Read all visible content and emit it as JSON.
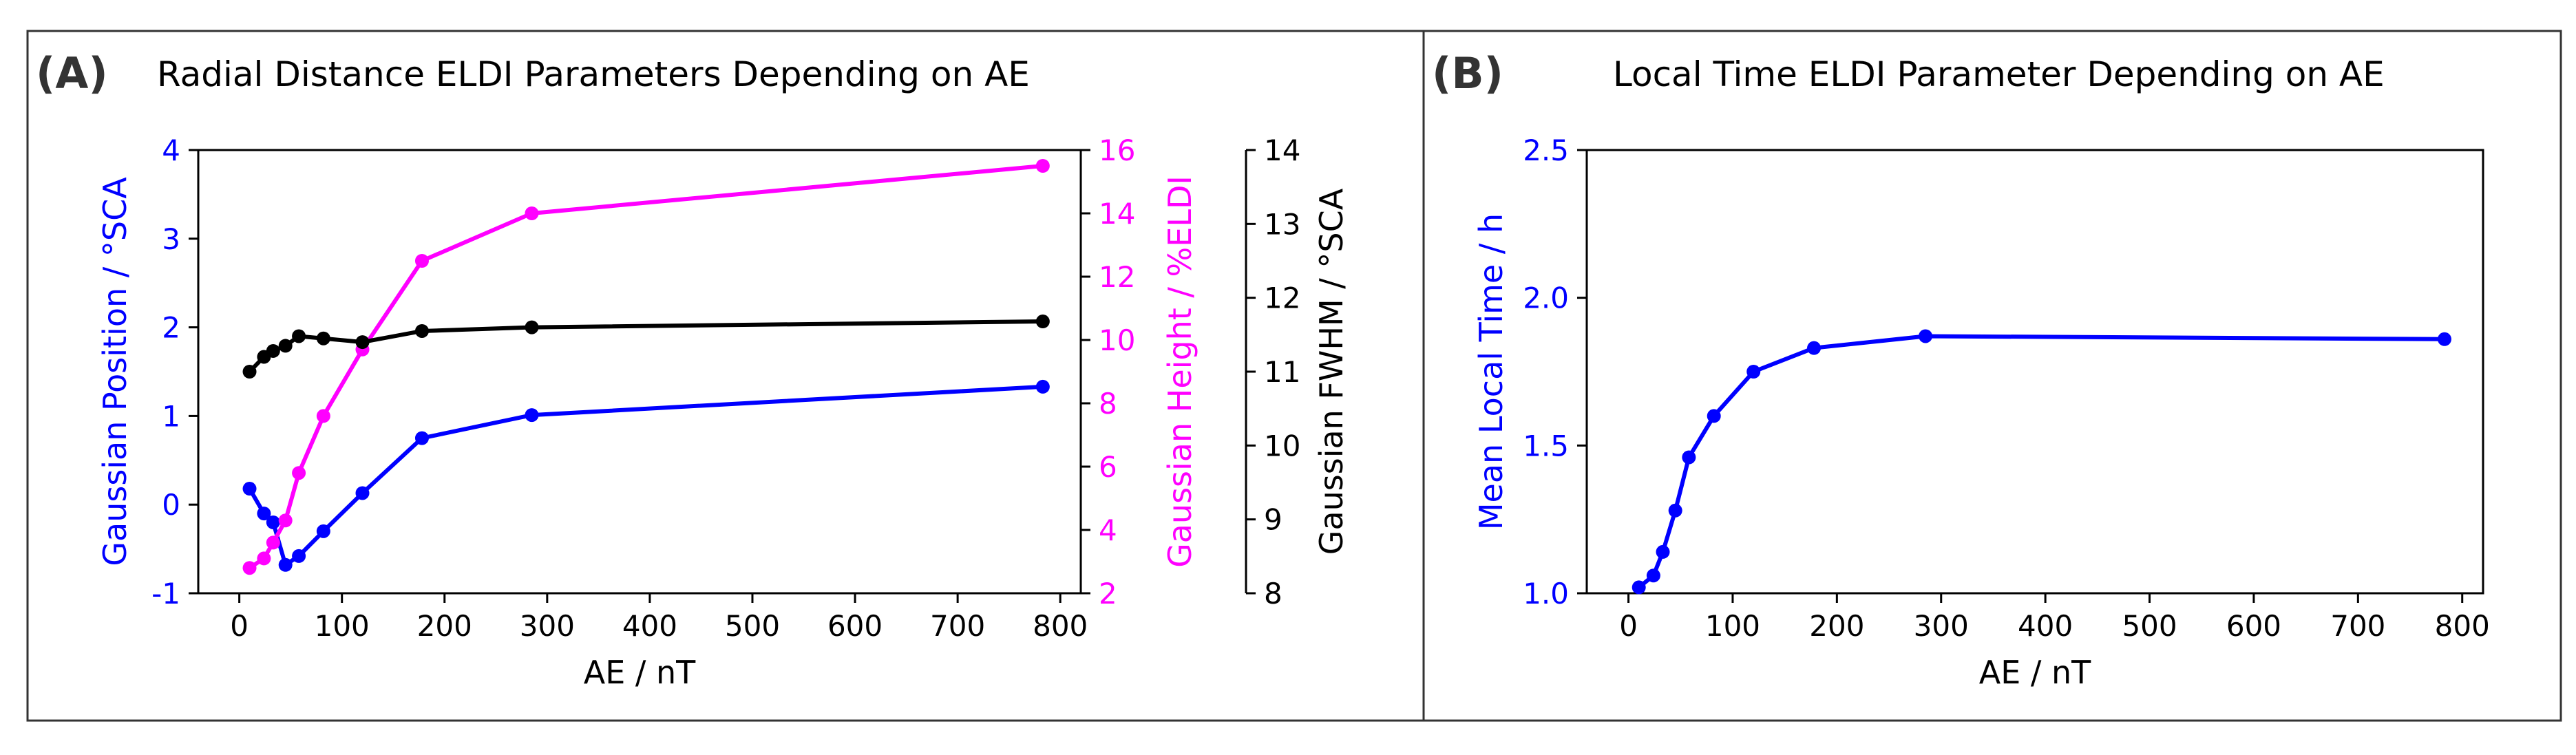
{
  "panels": [
    {
      "label": "(A)",
      "title": "Radial Distance ELDI Parameters Depending on AE"
    },
    {
      "label": "(B)",
      "title": "Local Time ELDI Parameter Depending on AE"
    }
  ],
  "colors": {
    "blue": "#0000ff",
    "magenta": "#ff00ff",
    "black": "#000000",
    "frame": "#333333"
  },
  "chart_data": [
    {
      "type": "line",
      "title": "Radial Distance ELDI Parameters Depending on AE",
      "xlabel": "AE / nT",
      "xlim": [
        -40,
        820
      ],
      "xticks": [
        0,
        100,
        200,
        300,
        400,
        500,
        600,
        700,
        800
      ],
      "x": [
        10,
        24,
        33,
        45,
        58,
        82,
        120,
        178,
        285,
        783
      ],
      "series": [
        {
          "name": "Gaussian Position",
          "axis": "left",
          "color": "#0000ff",
          "ylabel": "Gaussian Position / °SCA",
          "ylim": [
            -1,
            4
          ],
          "yticks": [
            -1,
            0,
            1,
            2,
            3,
            4
          ],
          "ytick_labels": [
            "-1",
            "0",
            "1",
            "2",
            "3",
            "4"
          ],
          "values": [
            0.18,
            -0.1,
            -0.2,
            -0.68,
            -0.58,
            -0.3,
            0.13,
            0.75,
            1.01,
            1.33
          ]
        },
        {
          "name": "Gaussian Height",
          "axis": "right1",
          "color": "#ff00ff",
          "ylabel": "Gaussian Height / %ELDI",
          "ylim": [
            2,
            16
          ],
          "yticks": [
            2,
            4,
            6,
            8,
            10,
            12,
            14,
            16
          ],
          "ytick_labels": [
            "2",
            "4",
            "6",
            "8",
            "10",
            "12",
            "14",
            "16"
          ],
          "values": [
            2.8,
            3.1,
            3.6,
            4.3,
            5.8,
            7.6,
            9.7,
            12.5,
            14.0,
            15.5
          ]
        },
        {
          "name": "Gaussian FWHM",
          "axis": "right2",
          "color": "#000000",
          "ylabel": "Gaussian FWHM / °SCA",
          "ylim": [
            8,
            14
          ],
          "yticks": [
            8,
            9,
            10,
            11,
            12,
            13,
            14
          ],
          "ytick_labels": [
            "8",
            "9",
            "10",
            "11",
            "12",
            "13",
            "14"
          ],
          "values": [
            11.0,
            11.2,
            11.28,
            11.35,
            11.48,
            11.45,
            11.4,
            11.55,
            11.6,
            11.68
          ]
        }
      ]
    },
    {
      "type": "line",
      "title": "Local Time ELDI Parameter Depending on AE",
      "xlabel": "AE / nT",
      "xlim": [
        -40,
        820
      ],
      "xticks": [
        0,
        100,
        200,
        300,
        400,
        500,
        600,
        700,
        800
      ],
      "x": [
        10,
        24,
        33,
        45,
        58,
        82,
        120,
        178,
        285,
        783
      ],
      "series": [
        {
          "name": "Mean Local Time",
          "axis": "left",
          "color": "#0000ff",
          "ylabel": "Mean Local Time / h",
          "ylim": [
            1.0,
            2.5
          ],
          "yticks": [
            1.0,
            1.5,
            2.0,
            2.5
          ],
          "ytick_labels": [
            "1.0",
            "1.5",
            "2.0",
            "2.5"
          ],
          "values": [
            1.02,
            1.06,
            1.14,
            1.28,
            1.46,
            1.6,
            1.75,
            1.83,
            1.87,
            1.86
          ]
        }
      ]
    }
  ]
}
